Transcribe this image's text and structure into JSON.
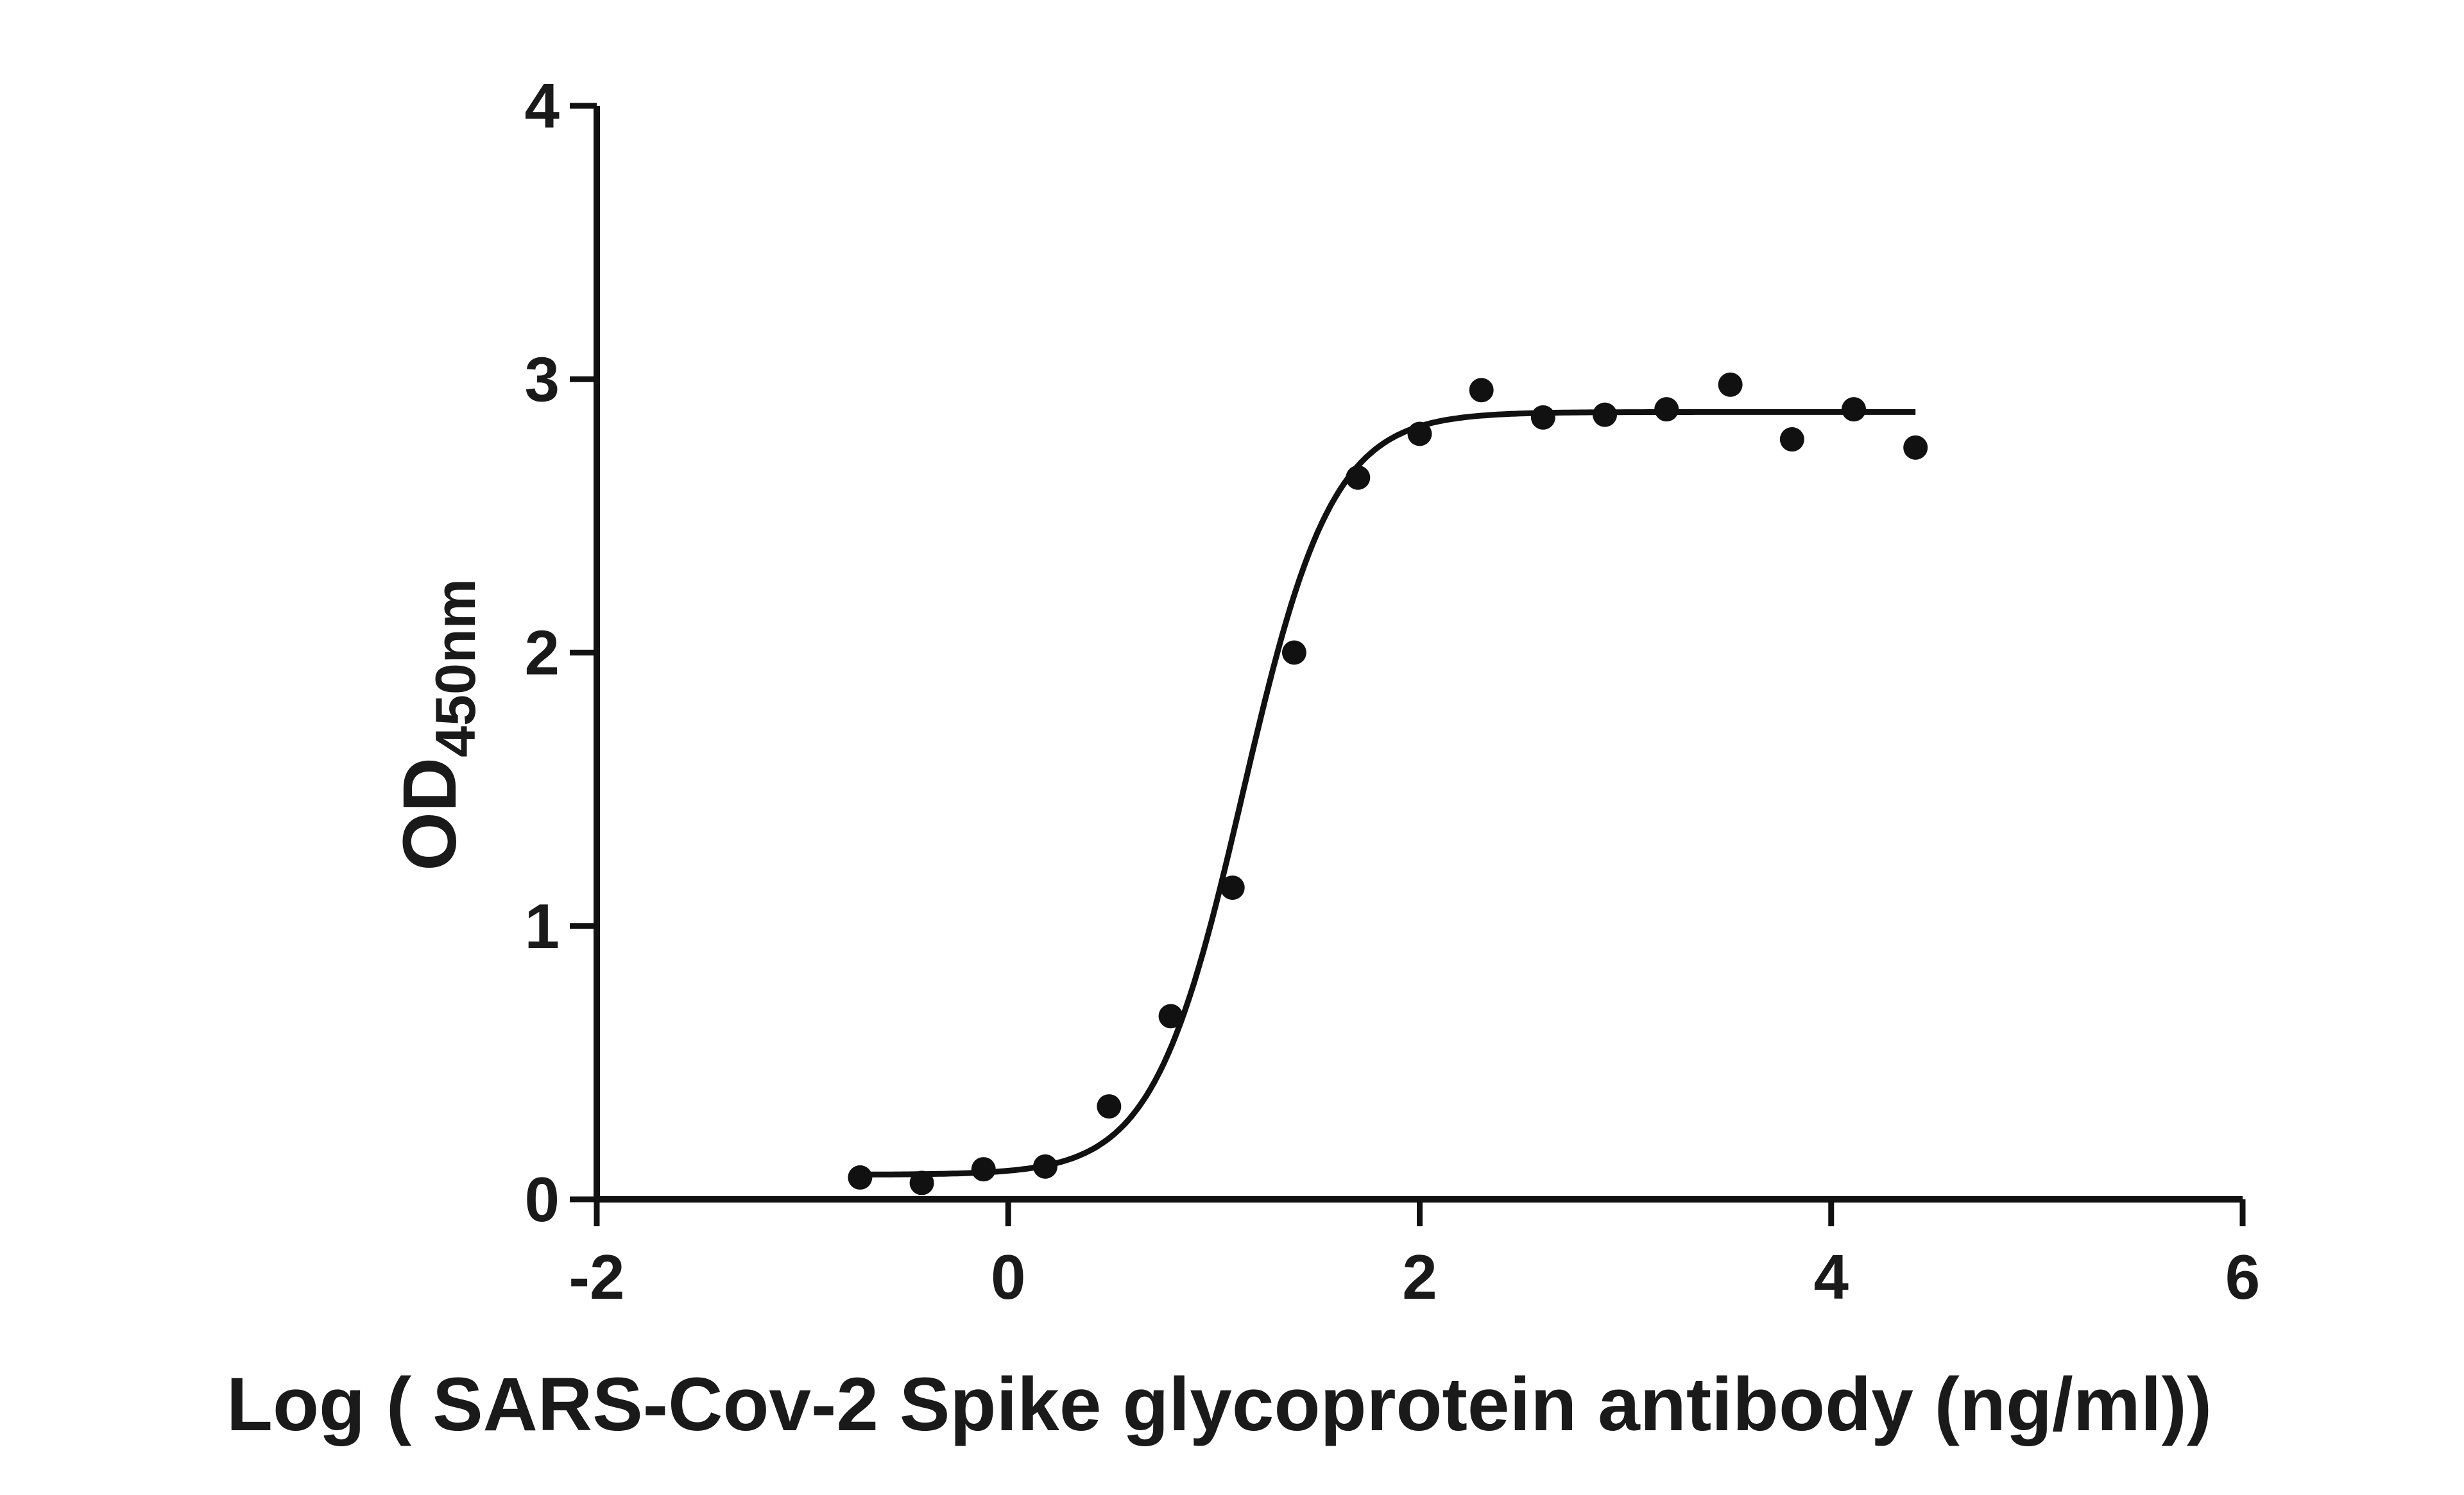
{
  "chart_data": {
    "type": "scatter",
    "title": "",
    "xlabel": "Log ( SARS-Cov-2 Spike glycoprotein antibody (ng/ml))",
    "ylabel": {
      "main": "OD",
      "sub": "450nm"
    },
    "xlim": [
      -2,
      6
    ],
    "ylim": [
      0,
      4
    ],
    "x_ticks": [
      -2,
      0,
      2,
      4,
      6
    ],
    "y_ticks": [
      0,
      1,
      2,
      3,
      4
    ],
    "grid": false,
    "legend": "none",
    "colors": {
      "points": "#111111",
      "curve": "#111111",
      "axes": "#111111"
    },
    "series": [
      {
        "points": [
          {
            "x": -0.72,
            "y": 0.08
          },
          {
            "x": -0.42,
            "y": 0.06
          },
          {
            "x": -0.12,
            "y": 0.11
          },
          {
            "x": 0.18,
            "y": 0.12
          },
          {
            "x": 0.49,
            "y": 0.34
          },
          {
            "x": 0.79,
            "y": 0.67
          },
          {
            "x": 1.09,
            "y": 1.14
          },
          {
            "x": 1.39,
            "y": 2.0
          },
          {
            "x": 1.7,
            "y": 2.64
          },
          {
            "x": 2.0,
            "y": 2.8
          },
          {
            "x": 2.3,
            "y": 2.96
          },
          {
            "x": 2.6,
            "y": 2.86
          },
          {
            "x": 2.9,
            "y": 2.87
          },
          {
            "x": 3.2,
            "y": 2.89
          },
          {
            "x": 3.51,
            "y": 2.98
          },
          {
            "x": 3.81,
            "y": 2.78
          },
          {
            "x": 4.11,
            "y": 2.89
          },
          {
            "x": 4.41,
            "y": 2.75
          }
        ],
        "fit": {
          "model": "4PL",
          "bottom": 0.09,
          "top": 2.88,
          "logEC50": 1.14,
          "hillslope": 2.0,
          "x_range": [
            -0.72,
            4.41
          ]
        }
      }
    ]
  }
}
